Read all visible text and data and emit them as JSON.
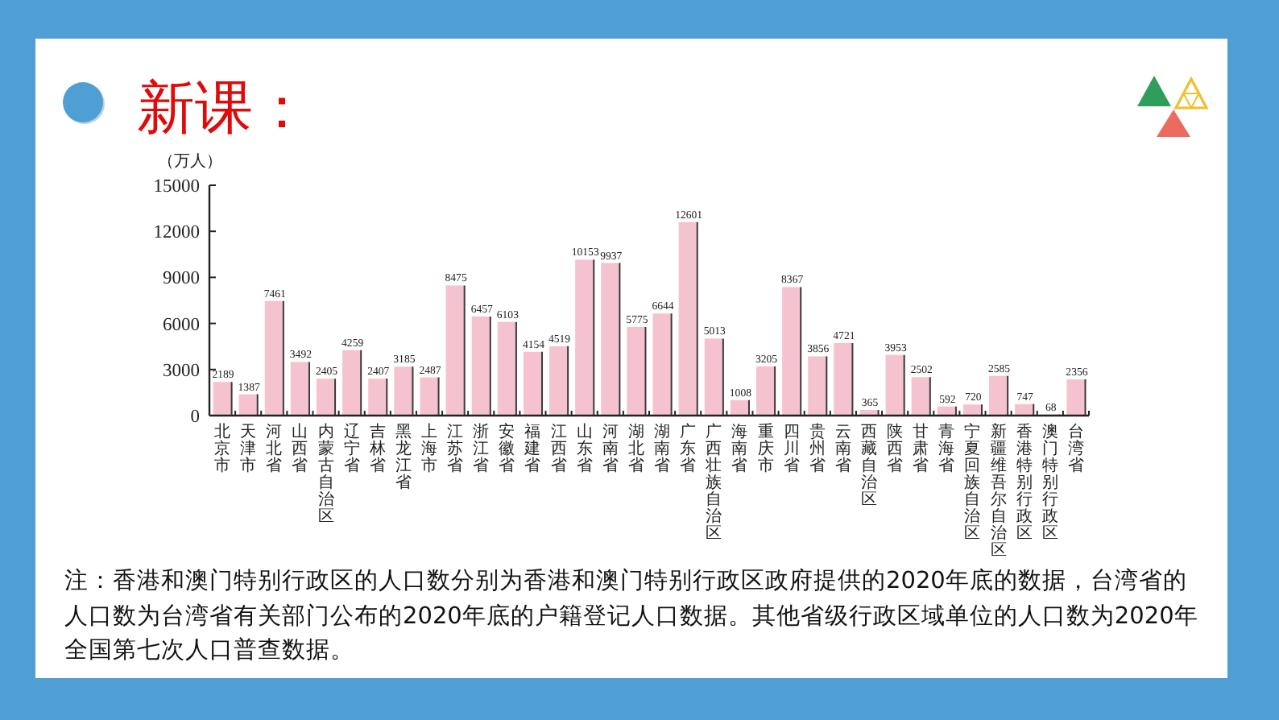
{
  "chart_data": {
    "type": "bar",
    "title": "新课：",
    "ylabel": "（万人）",
    "categories": [
      "北京市",
      "天津市",
      "河北省",
      "山西省",
      "内蒙古自治区",
      "辽宁省",
      "吉林省",
      "黑龙江省",
      "上海市",
      "江苏省",
      "浙江省",
      "安徽省",
      "福建省",
      "江西省",
      "山东省",
      "河南省",
      "湖北省",
      "湖南省",
      "广东省",
      "广西壮族自治区",
      "海南省",
      "重庆市",
      "四川省",
      "贵州省",
      "云南省",
      "西藏自治区",
      "陕西省",
      "甘肃省",
      "青海省",
      "宁夏回族自治区",
      "新疆维吾尔自治区",
      "香港特别行政区",
      "澳门特别行政区",
      "台湾省"
    ],
    "values": [
      2189,
      1387,
      7461,
      3492,
      2405,
      4259,
      2407,
      3185,
      2487,
      8475,
      6457,
      6103,
      4154,
      4519,
      10153,
      9937,
      5775,
      6644,
      12601,
      5013,
      1008,
      3205,
      8367,
      3856,
      4721,
      365,
      3953,
      2502,
      592,
      720,
      2585,
      747,
      68,
      2356
    ],
    "color": "#f5c3cf",
    "ylim": [
      0,
      15000
    ],
    "yticks": [
      0,
      3000,
      6000,
      9000,
      12000,
      15000
    ],
    "data_labels": true,
    "annotations": [
      "注：香港和澳门特别行政区的人口数分别为香港和澳门特别行政区政府提供的2020年底的数据，台湾省的人口数为台湾省有关部门公布的2020年底的户籍登记人口数据。其他省级行政区域单位的人口数为2020年全国第七次人口普查数据。"
    ]
  }
}
